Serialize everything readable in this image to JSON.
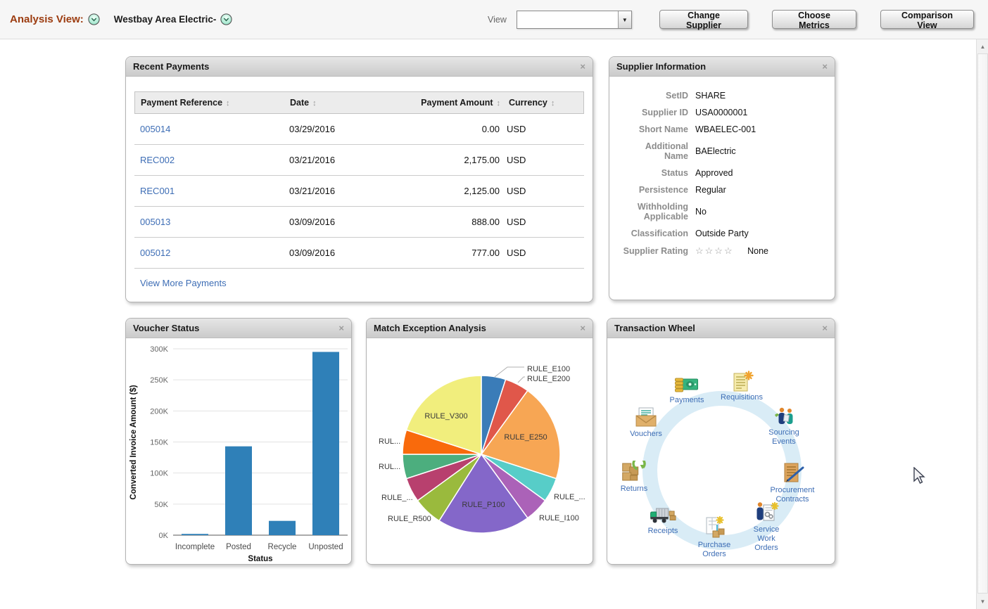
{
  "header": {
    "analysis_view_label": "Analysis View:",
    "supplier_name": "Westbay Area Electric-",
    "view_label": "View",
    "view_value": "",
    "change_supplier": "Change Supplier",
    "choose_metrics": "Choose Metrics",
    "comparison_view": "Comparison View"
  },
  "recent_payments": {
    "title": "Recent Payments",
    "columns": {
      "reference": "Payment Reference",
      "date": "Date",
      "amount": "Payment Amount",
      "currency": "Currency"
    },
    "rows": [
      {
        "reference": "005014",
        "date": "03/29/2016",
        "amount": "0.00",
        "currency": "USD"
      },
      {
        "reference": "REC002",
        "date": "03/21/2016",
        "amount": "2,175.00",
        "currency": "USD"
      },
      {
        "reference": "REC001",
        "date": "03/21/2016",
        "amount": "2,125.00",
        "currency": "USD"
      },
      {
        "reference": "005013",
        "date": "03/09/2016",
        "amount": "888.00",
        "currency": "USD"
      },
      {
        "reference": "005012",
        "date": "03/09/2016",
        "amount": "777.00",
        "currency": "USD"
      }
    ],
    "view_more": "View More Payments"
  },
  "supplier_information": {
    "title": "Supplier Information",
    "fields": [
      {
        "label": "SetID",
        "value": "SHARE"
      },
      {
        "label": "Supplier ID",
        "value": "USA0000001"
      },
      {
        "label": "Short Name",
        "value": "WBAELEC-001"
      },
      {
        "label": "Additional Name",
        "value": "BAElectric"
      },
      {
        "label": "Status",
        "value": "Approved"
      },
      {
        "label": "Persistence",
        "value": "Regular"
      },
      {
        "label": "Withholding Applicable",
        "value": "No"
      },
      {
        "label": "Classification",
        "value": "Outside Party"
      },
      {
        "label": "Supplier Rating",
        "value": "None",
        "stars": "☆☆☆☆"
      }
    ]
  },
  "voucher_status": {
    "title": "Voucher Status"
  },
  "match_exception": {
    "title": "Match Exception Analysis"
  },
  "transaction_wheel": {
    "title": "Transaction Wheel",
    "items": [
      {
        "label": "Payments"
      },
      {
        "label": "Requisitions"
      },
      {
        "label": "Sourcing Events"
      },
      {
        "label": "Vouchers"
      },
      {
        "label": "Procurement Contracts"
      },
      {
        "label": "Returns"
      },
      {
        "label": "Receipts"
      },
      {
        "label": "Purchase Orders"
      },
      {
        "label": "Service Work Orders"
      }
    ]
  },
  "chart_data": [
    {
      "type": "bar",
      "title": "Voucher Status",
      "categories": [
        "Incomplete",
        "Posted",
        "Recycle",
        "Unposted"
      ],
      "values": [
        2000,
        143000,
        23000,
        295000
      ],
      "xlabel": "Status",
      "ylabel": "Converted Invoice Amount ($)",
      "ylim": [
        0,
        300000
      ],
      "ytick_step": 50000,
      "ytick_suffix": "K",
      "bar_color": "#2f80b8",
      "grid": true,
      "legend": "none"
    },
    {
      "type": "pie",
      "title": "Match Exception Analysis",
      "slices": [
        {
          "label": "RULE_E100",
          "value": 5,
          "color": "#3a7cb8"
        },
        {
          "label": "RULE_E200",
          "value": 5,
          "color": "#e0574a"
        },
        {
          "label": "RULE_E250",
          "value": 20,
          "color": "#f7a654"
        },
        {
          "label": "RULE_...",
          "value": 5,
          "color": "#57cdc8"
        },
        {
          "label": "RULE_I100",
          "value": 5,
          "color": "#ab62b8"
        },
        {
          "label": "RULE_P100",
          "value": 19,
          "color": "#8467c9"
        },
        {
          "label": "RULE_R500",
          "value": 6,
          "color": "#9aba3d"
        },
        {
          "label": "RULE_...",
          "value": 5,
          "color": "#b8406e"
        },
        {
          "label": "RUL...",
          "value": 5,
          "color": "#4cae7e"
        },
        {
          "label": "RUL...",
          "value": 5,
          "color": "#f96a0c"
        },
        {
          "label": "RULE_V300",
          "value": 20,
          "color": "#f1ee7d"
        }
      ],
      "legend": "none"
    }
  ]
}
